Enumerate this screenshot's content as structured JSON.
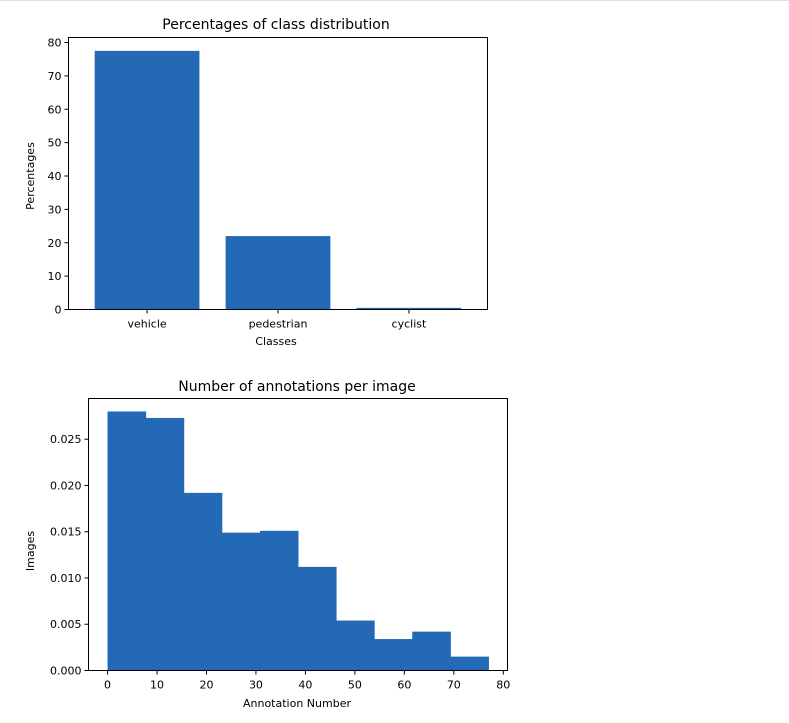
{
  "chart_data": [
    {
      "type": "bar",
      "title": "Percentages of class distribution",
      "xlabel": "Classes",
      "ylabel": "Percentages",
      "categories": [
        "vehicle",
        "pedestrian",
        "cyclist"
      ],
      "values": [
        77.5,
        22.0,
        0.5
      ],
      "ylim": [
        0,
        81.5
      ],
      "yticks": [
        0,
        10,
        20,
        30,
        40,
        50,
        60,
        70,
        80
      ],
      "color": "#2369b5",
      "grid": false
    },
    {
      "type": "bar",
      "title": "Number of annotations per image",
      "xlabel": "Annotation Number",
      "ylabel": "Images",
      "bins": [
        {
          "start": 0,
          "end": 7.7,
          "value": 0.028
        },
        {
          "start": 7.7,
          "end": 15.4,
          "value": 0.0273
        },
        {
          "start": 15.4,
          "end": 23.1,
          "value": 0.0192
        },
        {
          "start": 23.1,
          "end": 30.8,
          "value": 0.0149
        },
        {
          "start": 30.8,
          "end": 38.5,
          "value": 0.0151
        },
        {
          "start": 38.5,
          "end": 46.2,
          "value": 0.0112
        },
        {
          "start": 46.2,
          "end": 53.9,
          "value": 0.0054
        },
        {
          "start": 53.9,
          "end": 61.6,
          "value": 0.0034
        },
        {
          "start": 61.6,
          "end": 69.3,
          "value": 0.0042
        },
        {
          "start": 69.3,
          "end": 77.0,
          "value": 0.0015
        }
      ],
      "xlim": [
        -3.85,
        80.85
      ],
      "ylim": [
        0,
        0.0294
      ],
      "xticks": [
        0,
        10,
        20,
        30,
        40,
        50,
        60,
        70,
        80
      ],
      "yticks": [
        "0.000",
        "0.005",
        "0.010",
        "0.015",
        "0.020",
        "0.025"
      ],
      "color": "#2369b5",
      "grid": false
    }
  ]
}
